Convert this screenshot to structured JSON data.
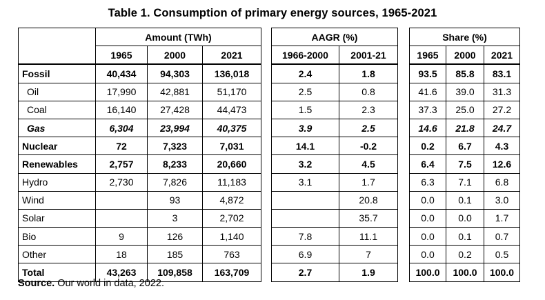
{
  "title": "Table 1. Consumption of primary energy sources, 1965-2021",
  "amount": {
    "group_header": "Amount (TWh)",
    "years": [
      "1965",
      "2000",
      "2021"
    ]
  },
  "aagr": {
    "group_header": "AAGR (%)",
    "periods": [
      "1966-2000",
      "2001-21"
    ]
  },
  "share": {
    "group_header": "Share (%)",
    "years": [
      "1965",
      "2000",
      "2021"
    ]
  },
  "rows": [
    {
      "label": "Fossil",
      "style": "bold",
      "amount": [
        "40,434",
        "94,303",
        "136,018"
      ],
      "aagr": [
        "2.4",
        "1.8"
      ],
      "share": [
        "93.5",
        "85.8",
        "83.1"
      ]
    },
    {
      "label": "Oil",
      "style": "sub",
      "amount": [
        "17,990",
        "42,881",
        "51,170"
      ],
      "aagr": [
        "2.5",
        "0.8"
      ],
      "share": [
        "41.6",
        "39.0",
        "31.3"
      ]
    },
    {
      "label": "Coal",
      "style": "sub",
      "amount": [
        "16,140",
        "27,428",
        "44,473"
      ],
      "aagr": [
        "1.5",
        "2.3"
      ],
      "share": [
        "37.3",
        "25.0",
        "27.2"
      ]
    },
    {
      "label": "Gas",
      "style": "sub-italic",
      "amount": [
        "6,304",
        "23,994",
        "40,375"
      ],
      "aagr": [
        "3.9",
        "2.5"
      ],
      "share": [
        "14.6",
        "21.8",
        "24.7"
      ]
    },
    {
      "label": "Nuclear",
      "style": "bold",
      "amount": [
        "72",
        "7,323",
        "7,031"
      ],
      "aagr": [
        "14.1",
        "-0.2"
      ],
      "share": [
        "0.2",
        "6.7",
        "4.3"
      ]
    },
    {
      "label": "Renewables",
      "style": "bold",
      "amount": [
        "2,757",
        "8,233",
        "20,660"
      ],
      "aagr": [
        "3.2",
        "4.5"
      ],
      "share": [
        "6.4",
        "7.5",
        "12.6"
      ]
    },
    {
      "label": "Hydro",
      "style": "normal",
      "amount": [
        "2,730",
        "7,826",
        "11,183"
      ],
      "aagr": [
        "3.1",
        "1.7"
      ],
      "share": [
        "6.3",
        "7.1",
        "6.8"
      ]
    },
    {
      "label": "Wind",
      "style": "normal",
      "amount": [
        "",
        "93",
        "4,872"
      ],
      "aagr": [
        "",
        "20.8"
      ],
      "share": [
        "0.0",
        "0.1",
        "3.0"
      ]
    },
    {
      "label": "Solar",
      "style": "normal",
      "amount": [
        "",
        "3",
        "2,702"
      ],
      "aagr": [
        "",
        "35.7"
      ],
      "share": [
        "0.0",
        "0.0",
        "1.7"
      ]
    },
    {
      "label": "Bio",
      "style": "normal",
      "amount": [
        "9",
        "126",
        "1,140"
      ],
      "aagr": [
        "7.8",
        "11.1"
      ],
      "share": [
        "0.0",
        "0.1",
        "0.7"
      ]
    },
    {
      "label": "Other",
      "style": "normal",
      "amount": [
        "18",
        "185",
        "763"
      ],
      "aagr": [
        "6.9",
        "7"
      ],
      "share": [
        "0.0",
        "0.2",
        "0.5"
      ]
    },
    {
      "label": "Total",
      "style": "bold",
      "amount": [
        "43,263",
        "109,858",
        "163,709"
      ],
      "aagr": [
        "2.7",
        "1.9"
      ],
      "share": [
        "100.0",
        "100.0",
        "100.0"
      ]
    }
  ],
  "source": {
    "label": "Source.",
    "text": " Our world in data, 2022."
  }
}
